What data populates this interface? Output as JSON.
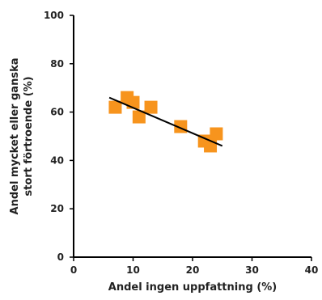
{
  "chart_data": {
    "type": "scatter",
    "title": "",
    "xlabel": "Andel ingen uppfattning (%)",
    "ylabel_lines": [
      "Andel mycket eller ganska",
      "stort förtroende (%)"
    ],
    "xlim": [
      0,
      40
    ],
    "ylim": [
      0,
      100
    ],
    "x_ticks": [
      0,
      10,
      20,
      30,
      40
    ],
    "y_ticks": [
      0,
      20,
      40,
      60,
      80,
      100
    ],
    "grid": false,
    "legend": "none",
    "marker": "square",
    "series": [
      {
        "color": "#F7941D",
        "points": [
          {
            "x": 7,
            "y": 62
          },
          {
            "x": 9,
            "y": 66
          },
          {
            "x": 10,
            "y": 64
          },
          {
            "x": 11,
            "y": 58
          },
          {
            "x": 13,
            "y": 62
          },
          {
            "x": 18,
            "y": 54
          },
          {
            "x": 22,
            "y": 48
          },
          {
            "x": 23,
            "y": 46
          },
          {
            "x": 24,
            "y": 51
          }
        ]
      }
    ],
    "trendline": {
      "type": "linear",
      "color": "#000000",
      "from": {
        "x": 6,
        "y": 66
      },
      "to": {
        "x": 25,
        "y": 46
      }
    }
  }
}
